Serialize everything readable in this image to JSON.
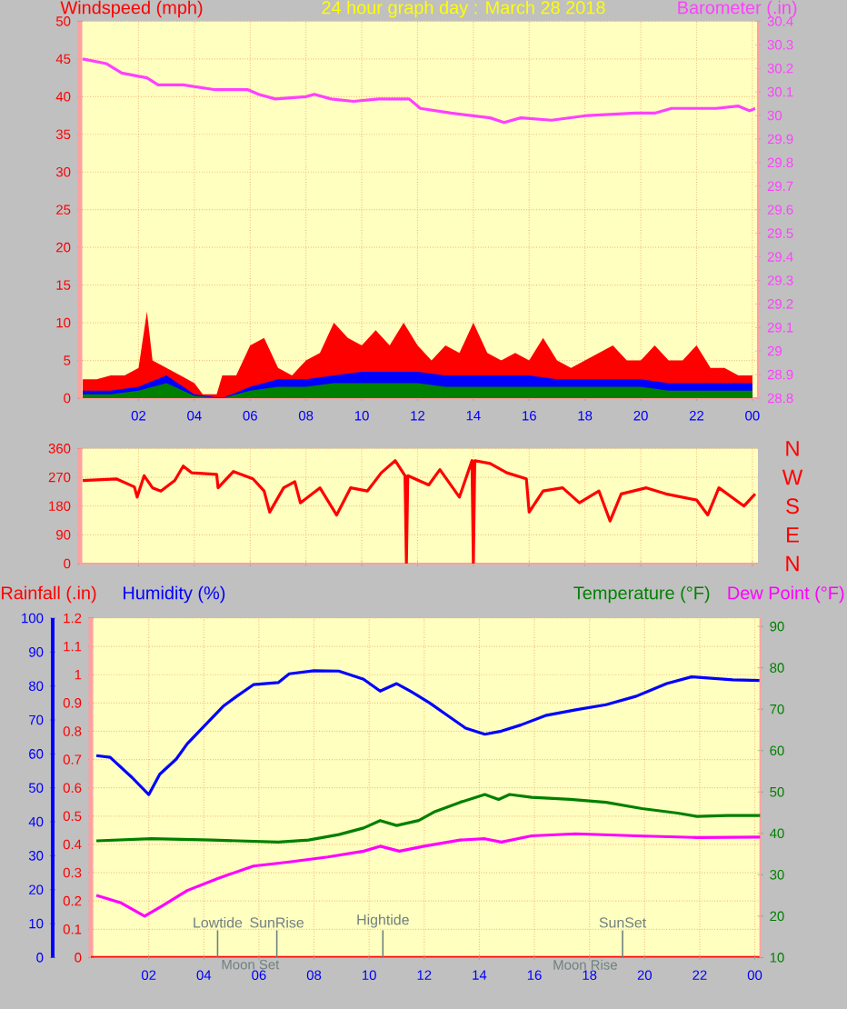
{
  "chart_data": [
    {
      "type": "line",
      "title": "24 hour graph day : March 28 2018",
      "ylabel": "Windspeed (mph)",
      "y2label": "Barometer (.in)",
      "xlim": [
        "2018-03-27T23:54",
        "2018-03-29T00:12"
      ],
      "xticks": [
        {
          "value": "2018-03-28T02:00",
          "label": "02"
        },
        {
          "value": "2018-03-28T04:00",
          "label": "04"
        },
        {
          "value": "2018-03-28T06:00",
          "label": "06"
        },
        {
          "value": "2018-03-28T08:00",
          "label": "08"
        },
        {
          "value": "2018-03-28T10:00",
          "label": "10"
        },
        {
          "value": "2018-03-28T12:00",
          "label": "12"
        },
        {
          "value": "2018-03-28T14:00",
          "label": "14"
        },
        {
          "value": "2018-03-28T16:00",
          "label": "16"
        },
        {
          "value": "2018-03-28T18:00",
          "label": "18"
        },
        {
          "value": "2018-03-28T20:00",
          "label": "20"
        },
        {
          "value": "2018-03-28T22:00",
          "label": "22"
        },
        {
          "value": "2018-03-29T00:00",
          "label": "00"
        }
      ],
      "ylim": [
        0,
        50
      ],
      "yticks": [
        0,
        5,
        10,
        15,
        20,
        25,
        30,
        35,
        40,
        45,
        50
      ],
      "y2lim": [
        28.8,
        30.4
      ],
      "y2ticks": [
        28.8,
        28.9,
        29,
        29.1,
        29.2,
        29.3,
        29.4,
        29.5,
        29.6,
        29.7,
        29.8,
        29.9,
        30,
        30.1,
        30.2,
        30.3,
        30.4
      ],
      "grid": true,
      "x": [
        "2018-03-28T00:00",
        "2018-03-28T01:00",
        "2018-03-28T02:00",
        "2018-03-28T03:00",
        "2018-03-28T04:00",
        "2018-03-28T05:00",
        "2018-03-28T06:00",
        "2018-03-28T07:00",
        "2018-03-28T08:00",
        "2018-03-28T09:00",
        "2018-03-28T10:00",
        "2018-03-28T11:00",
        "2018-03-28T12:00",
        "2018-03-28T13:00",
        "2018-03-28T14:00",
        "2018-03-28T15:00",
        "2018-03-28T16:00",
        "2018-03-28T17:00",
        "2018-03-28T18:00",
        "2018-03-28T19:00",
        "2018-03-28T20:00",
        "2018-03-28T21:00",
        "2018-03-28T22:00",
        "2018-03-28T23:00",
        "2018-03-29T00:00"
      ],
      "series": [
        {
          "type": "area",
          "color": "#ff0000",
          "x": [
            "2018-03-28T00:00",
            "2018-03-28T00:30",
            "2018-03-28T01:00",
            "2018-03-28T01:30",
            "2018-03-28T02:00",
            "2018-03-28T02:18",
            "2018-03-28T02:30",
            "2018-03-28T03:00",
            "2018-03-28T03:30",
            "2018-03-28T04:00",
            "2018-03-28T04:18",
            "2018-03-28T04:48",
            "2018-03-28T05:00",
            "2018-03-28T05:30",
            "2018-03-28T06:00",
            "2018-03-28T06:30",
            "2018-03-28T07:00",
            "2018-03-28T07:30",
            "2018-03-28T08:00",
            "2018-03-28T08:30",
            "2018-03-28T09:00",
            "2018-03-28T09:30",
            "2018-03-28T10:00",
            "2018-03-28T10:30",
            "2018-03-28T11:00",
            "2018-03-28T11:30",
            "2018-03-28T12:00",
            "2018-03-28T12:30",
            "2018-03-28T13:00",
            "2018-03-28T13:30",
            "2018-03-28T14:00",
            "2018-03-28T14:30",
            "2018-03-28T15:00",
            "2018-03-28T15:30",
            "2018-03-28T16:00",
            "2018-03-28T16:30",
            "2018-03-28T17:00",
            "2018-03-28T17:30",
            "2018-03-28T18:00",
            "2018-03-28T18:30",
            "2018-03-28T19:00",
            "2018-03-28T19:30",
            "2018-03-28T20:00",
            "2018-03-28T20:30",
            "2018-03-28T21:00",
            "2018-03-28T21:30",
            "2018-03-28T22:00",
            "2018-03-28T22:30",
            "2018-03-28T23:00",
            "2018-03-28T23:30",
            "2018-03-29T00:00"
          ],
          "values": [
            2.5,
            2.5,
            3,
            3,
            4,
            11.5,
            5,
            4,
            3,
            2,
            0.5,
            0.5,
            3,
            3,
            7,
            8,
            4,
            3,
            5,
            6,
            10,
            8,
            7,
            9,
            7,
            10,
            7,
            5,
            7,
            6,
            10,
            6,
            5,
            6,
            5,
            8,
            5,
            4,
            5,
            6,
            7,
            5,
            5,
            7,
            5,
            5,
            7,
            4,
            4,
            3,
            3
          ]
        },
        {
          "type": "area",
          "color": "#0000ff",
          "values": [
            1,
            1,
            1.5,
            3,
            0.5,
            0,
            1.5,
            2.5,
            2.5,
            3,
            3.5,
            3.5,
            3.5,
            3,
            3,
            3,
            3,
            2.5,
            2.5,
            2.5,
            2.5,
            2,
            2,
            2,
            2
          ]
        },
        {
          "type": "area",
          "color": "#008000",
          "values": [
            0.5,
            0.5,
            1,
            2,
            0.3,
            0,
            1,
            1.5,
            1.5,
            2,
            2,
            2,
            2,
            1.5,
            1.5,
            1.5,
            1.5,
            1.5,
            1.5,
            1.5,
            1.5,
            1,
            1,
            1,
            1
          ]
        },
        {
          "type": "line",
          "axis": "y2",
          "color": "#ff40ff",
          "x": [
            "2018-03-28T00:00",
            "2018-03-28T00:51",
            "2018-03-28T01:24",
            "2018-03-28T02:18",
            "2018-03-28T02:42",
            "2018-03-28T03:36",
            "2018-03-28T04:42",
            "2018-03-28T05:54",
            "2018-03-28T06:18",
            "2018-03-28T06:54",
            "2018-03-28T08:00",
            "2018-03-28T08:18",
            "2018-03-28T08:54",
            "2018-03-28T09:42",
            "2018-03-28T10:36",
            "2018-03-28T11:42",
            "2018-03-28T12:06",
            "2018-03-28T13:12",
            "2018-03-28T14:36",
            "2018-03-28T15:06",
            "2018-03-28T15:42",
            "2018-03-28T16:48",
            "2018-03-28T18:06",
            "2018-03-28T19:48",
            "2018-03-28T20:30",
            "2018-03-28T21:06",
            "2018-03-28T22:42",
            "2018-03-28T23:30",
            "2018-03-28T23:54",
            "2018-03-29T00:06"
          ],
          "values": [
            30.24,
            30.22,
            30.18,
            30.16,
            30.13,
            30.13,
            30.11,
            30.11,
            30.09,
            30.07,
            30.08,
            30.09,
            30.07,
            30.06,
            30.07,
            30.07,
            30.03,
            30.01,
            29.99,
            29.97,
            29.99,
            29.98,
            30,
            30.01,
            30.01,
            30.03,
            30.03,
            30.04,
            30.02,
            30.03
          ]
        }
      ]
    },
    {
      "type": "line",
      "xlim": [
        "2018-03-27T23:54",
        "2018-03-29T00:12"
      ],
      "xticks": [
        {
          "value": "2018-03-28T02:00",
          "label": null
        },
        {
          "value": "2018-03-28T04:00",
          "label": null
        },
        {
          "value": "2018-03-28T06:00",
          "label": null
        },
        {
          "value": "2018-03-28T08:00",
          "label": null
        },
        {
          "value": "2018-03-28T10:00",
          "label": null
        },
        {
          "value": "2018-03-28T12:00",
          "label": null
        },
        {
          "value": "2018-03-28T14:00",
          "label": null
        },
        {
          "value": "2018-03-28T16:00",
          "label": null
        },
        {
          "value": "2018-03-28T18:00",
          "label": null
        },
        {
          "value": "2018-03-28T20:00",
          "label": null
        },
        {
          "value": "2018-03-28T22:00",
          "label": null
        },
        {
          "value": "2018-03-29T00:00",
          "label": null
        }
      ],
      "ylim": [
        0,
        360
      ],
      "yticks": [
        0,
        90,
        180,
        270,
        360
      ],
      "tick_labels": "y",
      "grid": true,
      "annotations": [
        "N",
        "W",
        "S",
        "E",
        "N"
      ],
      "series": [
        {
          "color": "#ff0000",
          "x": [
            "2018-03-28T00:00",
            "2018-03-28T01:12",
            "2018-03-28T01:51",
            "2018-03-28T01:57",
            "2018-03-28T02:12",
            "2018-03-28T02:30",
            "2018-03-28T02:48",
            "2018-03-28T03:18",
            "2018-03-28T03:36",
            "2018-03-28T03:54",
            "2018-03-28T04:48",
            "2018-03-28T04:51",
            "2018-03-28T05:24",
            "2018-03-28T06:06",
            "2018-03-28T06:30",
            "2018-03-28T06:42",
            "2018-03-28T07:12",
            "2018-03-28T07:36",
            "2018-03-28T07:48",
            "2018-03-28T08:30",
            "2018-03-28T09:06",
            "2018-03-28T09:36",
            "2018-03-28T10:12",
            "2018-03-28T10:42",
            "2018-03-28T11:12",
            "2018-03-28T11:33",
            "2018-03-28T11:36",
            "2018-03-28T11:39",
            "2018-03-28T12:24",
            "2018-03-28T12:48",
            "2018-03-28T13:30",
            "2018-03-28T13:57",
            "2018-03-28T14:00",
            "2018-03-28T14:03",
            "2018-03-28T14:36",
            "2018-03-28T15:12",
            "2018-03-28T15:54",
            "2018-03-28T16:00",
            "2018-03-28T16:30",
            "2018-03-28T17:12",
            "2018-03-28T17:48",
            "2018-03-28T18:30",
            "2018-03-28T18:54",
            "2018-03-28T19:18",
            "2018-03-28T20:12",
            "2018-03-28T20:54",
            "2018-03-28T22:00",
            "2018-03-28T22:24",
            "2018-03-28T22:48",
            "2018-03-28T23:42",
            "2018-03-29T00:06"
          ],
          "values": [
            260,
            265,
            240,
            208,
            275,
            237,
            227,
            260,
            305,
            284,
            279,
            237,
            288,
            265,
            227,
            161,
            237,
            256,
            190,
            237,
            152,
            237,
            227,
            284,
            322,
            275,
            0,
            275,
            246,
            294,
            208,
            322,
            0,
            322,
            313,
            284,
            265,
            161,
            227,
            237,
            190,
            227,
            133,
            218,
            237,
            218,
            199,
            152,
            237,
            180,
            218
          ]
        }
      ]
    },
    {
      "type": "line",
      "ylabel": "Humidity (%)",
      "y2label": "Temperature (°F)",
      "y3label": "Rainfall (.in)",
      "xlim": [
        "2018-03-27T23:54",
        "2018-03-29T00:12"
      ],
      "xticks": [
        {
          "value": "2018-03-28T02:00",
          "label": "02"
        },
        {
          "value": "2018-03-28T04:00",
          "label": "04"
        },
        {
          "value": "2018-03-28T06:00",
          "label": "06"
        },
        {
          "value": "2018-03-28T08:00",
          "label": "08"
        },
        {
          "value": "2018-03-28T10:00",
          "label": "10"
        },
        {
          "value": "2018-03-28T12:00",
          "label": "12"
        },
        {
          "value": "2018-03-28T14:00",
          "label": "14"
        },
        {
          "value": "2018-03-28T16:00",
          "label": "16"
        },
        {
          "value": "2018-03-28T18:00",
          "label": "18"
        },
        {
          "value": "2018-03-28T20:00",
          "label": "20"
        },
        {
          "value": "2018-03-28T22:00",
          "label": "22"
        },
        {
          "value": "2018-03-29T00:00",
          "label": "00"
        }
      ],
      "ylim": [
        0,
        100
      ],
      "yticks": [
        0,
        10,
        20,
        30,
        40,
        50,
        60,
        70,
        80,
        90,
        100
      ],
      "y2lim": [
        10,
        92
      ],
      "y2ticks": [
        10,
        20,
        30,
        40,
        50,
        60,
        70,
        80,
        90
      ],
      "y3lim": [
        0,
        1.2
      ],
      "y3ticks": [
        0,
        0.1,
        0.2,
        0.3,
        0.4,
        0.5,
        0.6,
        0.7,
        0.8,
        0.9,
        1,
        1.1,
        1.2
      ],
      "grid": true,
      "series": [
        {
          "axis": "y3",
          "color": "#ff0000",
          "x": [
            "2018-03-27T23:54",
            "2018-03-29T00:12"
          ],
          "values": [
            0,
            0
          ]
        },
        {
          "color": "#0000ff",
          "x": [
            "2018-03-28T00:06",
            "2018-03-28T00:36",
            "2018-03-28T01:00",
            "2018-03-28T01:24",
            "2018-03-28T02:00",
            "2018-03-28T02:24",
            "2018-03-28T03:00",
            "2018-03-28T03:24",
            "2018-03-28T04:03",
            "2018-03-28T04:42",
            "2018-03-28T05:12",
            "2018-03-28T05:48",
            "2018-03-28T06:42",
            "2018-03-28T07:06",
            "2018-03-28T08:00",
            "2018-03-28T08:54",
            "2018-03-28T09:48",
            "2018-03-28T10:24",
            "2018-03-28T11:00",
            "2018-03-28T11:30",
            "2018-03-28T12:12",
            "2018-03-28T12:54",
            "2018-03-28T13:30",
            "2018-03-28T14:12",
            "2018-03-28T14:48",
            "2018-03-28T15:30",
            "2018-03-28T16:24",
            "2018-03-28T17:30",
            "2018-03-28T18:36",
            "2018-03-28T19:42",
            "2018-03-28T20:48",
            "2018-03-28T21:42",
            "2018-03-28T23:12",
            "2018-03-29T00:12"
          ],
          "values": [
            59.5,
            59,
            56,
            53,
            48,
            54,
            58.5,
            63,
            68.5,
            74,
            77,
            80.4,
            81,
            83.6,
            84.5,
            84.4,
            82,
            78.5,
            80.7,
            78.5,
            75,
            71,
            67.6,
            65.8,
            66.7,
            68.5,
            71.3,
            73,
            74.5,
            77,
            80.7,
            82.7,
            81.8,
            81.6
          ]
        },
        {
          "axis": "y2",
          "color": "#008000",
          "x": [
            "2018-03-28T00:06",
            "2018-03-28T02:06",
            "2018-03-28T04:18",
            "2018-03-28T06:42",
            "2018-03-28T07:48",
            "2018-03-28T08:54",
            "2018-03-28T09:48",
            "2018-03-28T10:24",
            "2018-03-28T11:00",
            "2018-03-28T11:48",
            "2018-03-28T12:24",
            "2018-03-28T13:18",
            "2018-03-28T14:12",
            "2018-03-28T14:42",
            "2018-03-28T15:06",
            "2018-03-28T15:54",
            "2018-03-28T17:18",
            "2018-03-28T18:36",
            "2018-03-28T19:54",
            "2018-03-28T21:12",
            "2018-03-28T21:54",
            "2018-03-28T23:00",
            "2018-03-29T00:12"
          ],
          "values": [
            38.2,
            38.7,
            38.4,
            37.9,
            38.4,
            39.7,
            41.3,
            43.1,
            41.9,
            43.1,
            45.3,
            47.5,
            49.4,
            48.2,
            49.4,
            48.7,
            48.2,
            47.5,
            46.0,
            44.9,
            44.1,
            44.3,
            44.3
          ]
        },
        {
          "name": "Dew Point (°F)",
          "axis": "y2",
          "color": "#ff00ff",
          "x": [
            "2018-03-28T00:06",
            "2018-03-28T01:00",
            "2018-03-28T01:51",
            "2018-03-28T02:30",
            "2018-03-28T03:24",
            "2018-03-28T04:30",
            "2018-03-28T05:48",
            "2018-03-28T07:06",
            "2018-03-28T08:30",
            "2018-03-28T09:48",
            "2018-03-28T10:24",
            "2018-03-28T11:06",
            "2018-03-28T12:00",
            "2018-03-28T13:18",
            "2018-03-28T14:12",
            "2018-03-28T14:48",
            "2018-03-28T15:54",
            "2018-03-28T17:30",
            "2018-03-28T19:42",
            "2018-03-28T21:54",
            "2018-03-29T00:12"
          ],
          "values": [
            25.0,
            23.2,
            20.0,
            22.5,
            26.2,
            29.1,
            32.1,
            33.1,
            34.3,
            35.7,
            36.9,
            35.7,
            36.9,
            38.4,
            38.7,
            37.9,
            39.4,
            39.9,
            39.4,
            39.0,
            39.1
          ]
        }
      ],
      "ref_lines": [
        {
          "axis": "x",
          "value": "2018-03-28T04:30",
          "label": "Lowtide",
          "color": "#708080"
        },
        {
          "axis": "x",
          "value": "2018-03-28T06:39",
          "label": "SunRise",
          "color": "#708080"
        },
        {
          "axis": "x",
          "value": "2018-03-28T19:12",
          "label": "SunSet",
          "color": "#708080"
        }
      ],
      "annotations": [
        {
          "text": "Moon Set",
          "x": "2018-03-28T04:33"
        },
        {
          "text": "Hightide",
          "x": "2018-03-28T10:30"
        },
        {
          "text": "Moon Rise",
          "x": "2018-03-28T19:06"
        }
      ]
    }
  ]
}
